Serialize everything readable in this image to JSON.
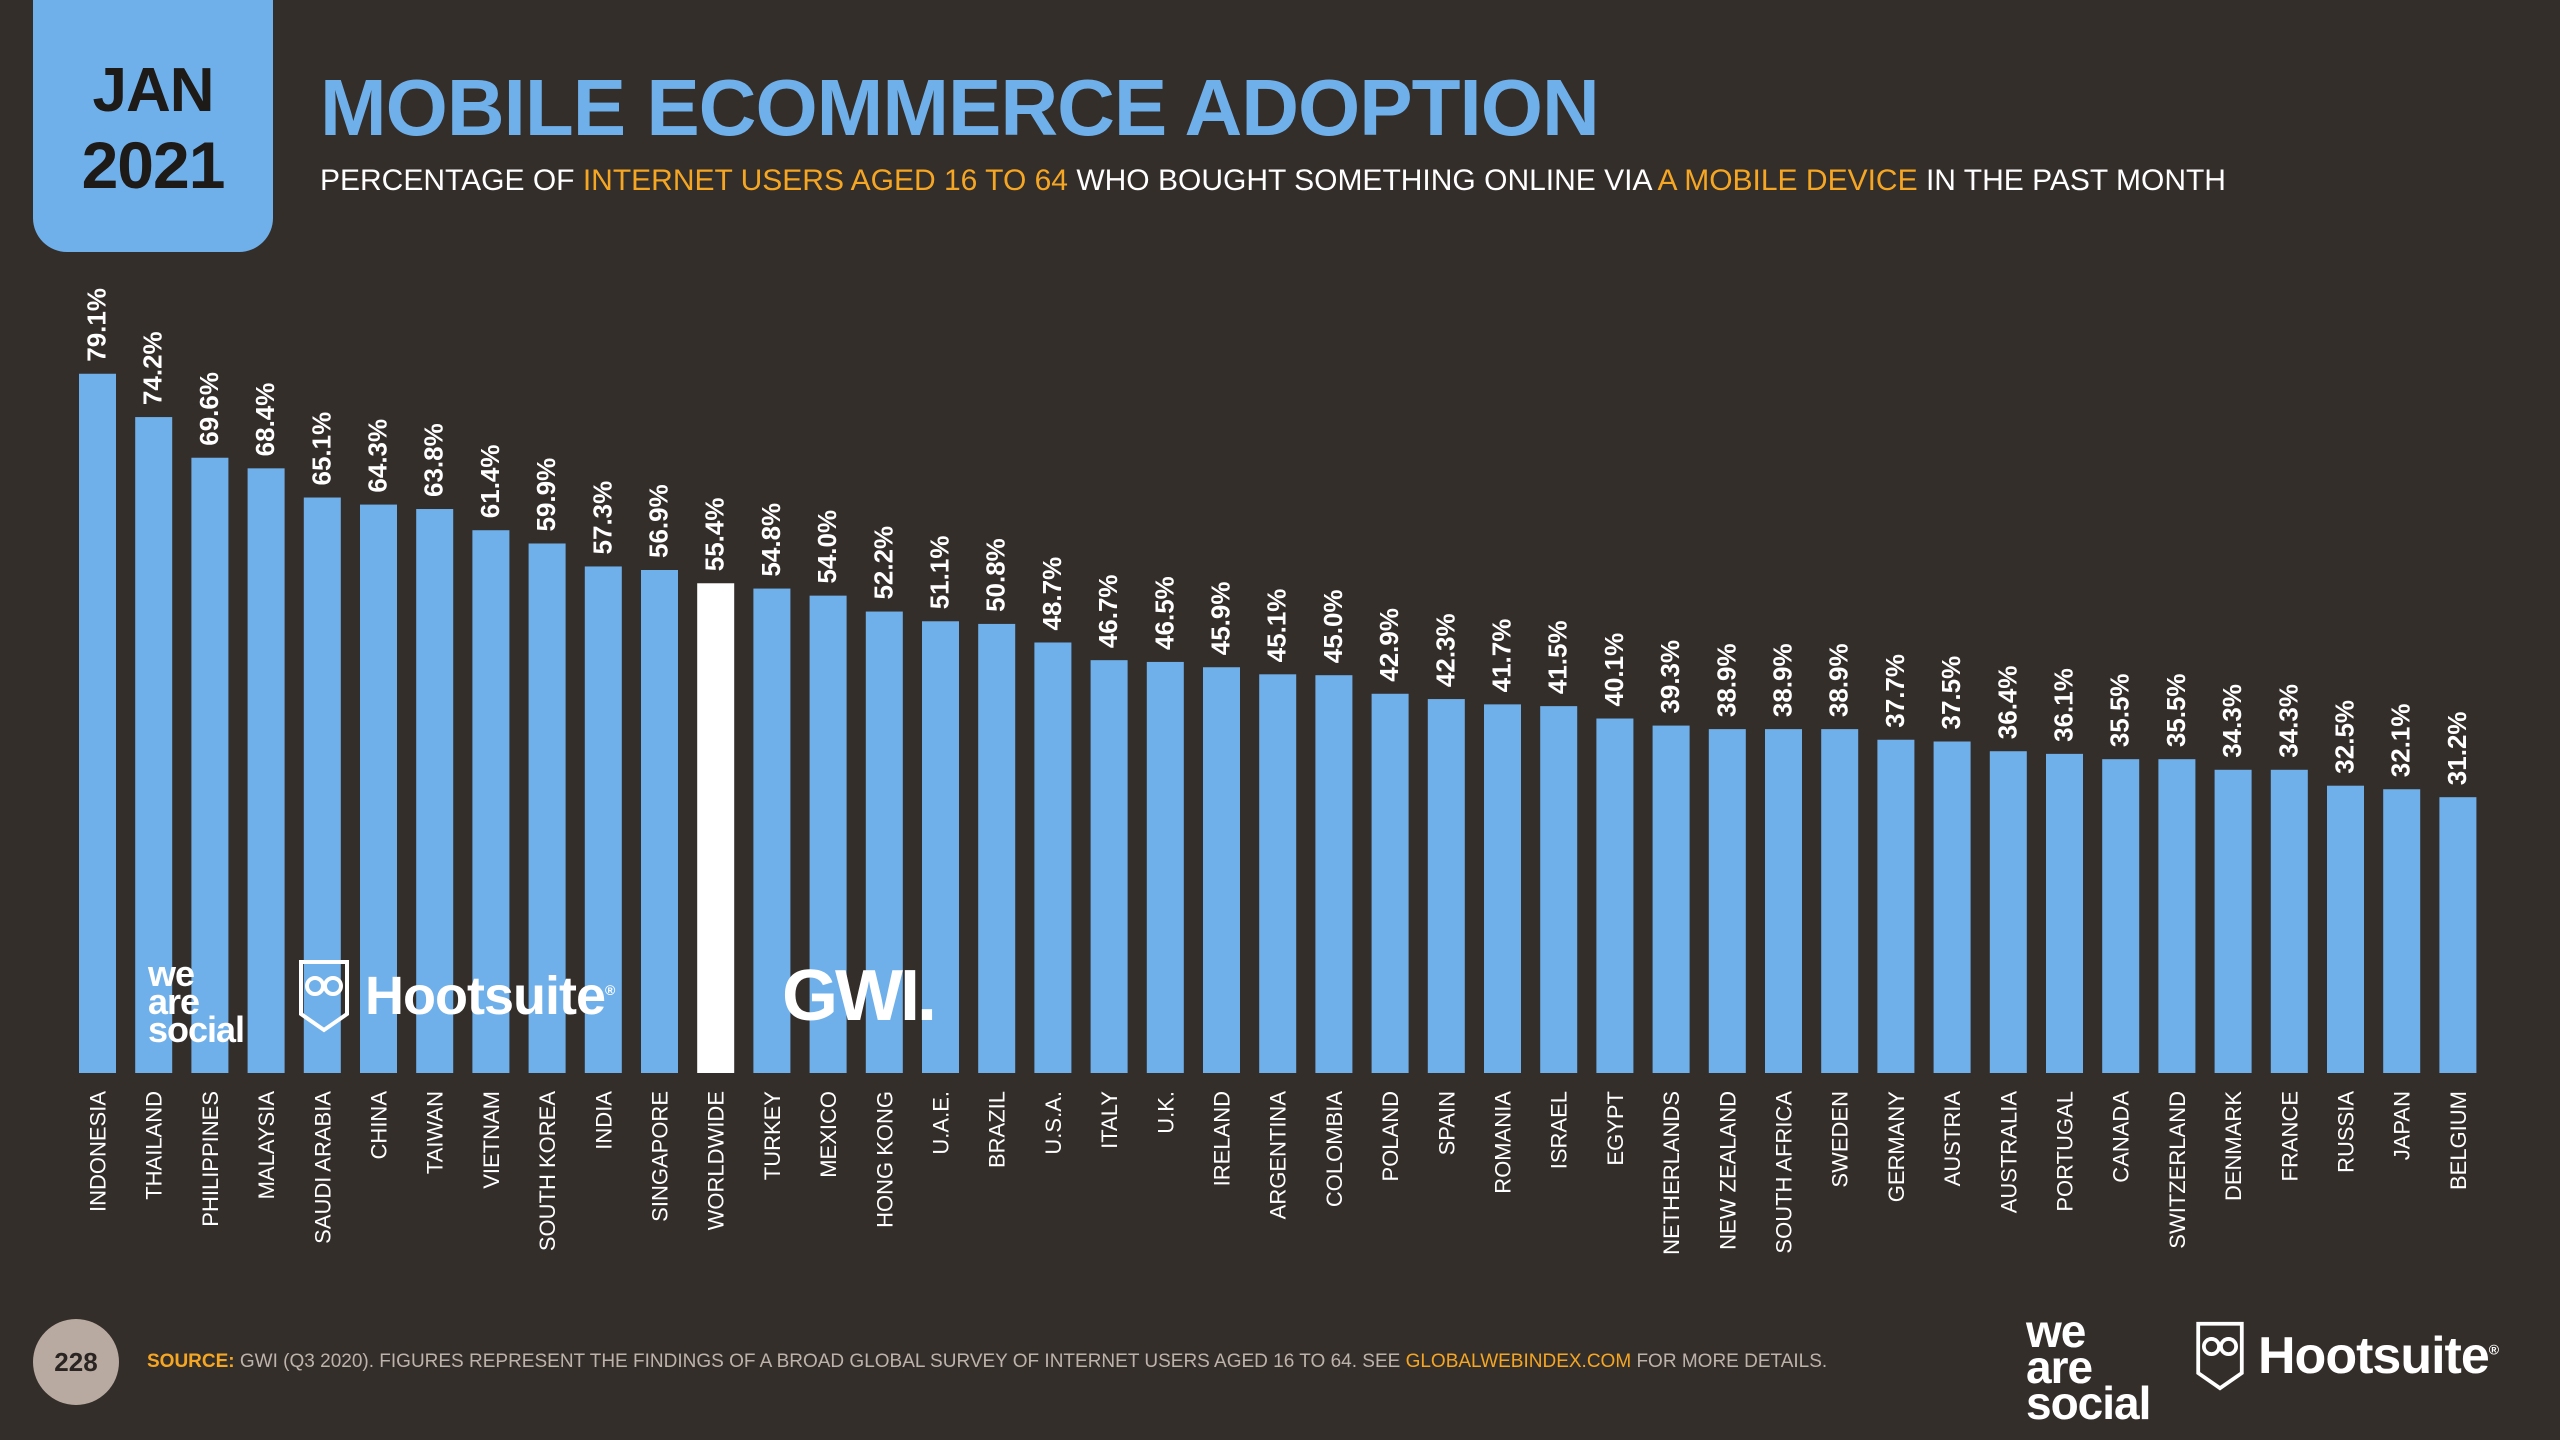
{
  "date_tab": {
    "month": "JAN",
    "year": "2021"
  },
  "title": "MOBILE ECOMMERCE ADOPTION",
  "subtitle": {
    "part1": "PERCENTAGE OF ",
    "highlight1": "INTERNET USERS AGED 16 TO 64",
    "part2": " WHO BOUGHT SOMETHING ONLINE VIA ",
    "highlight2": "A MOBILE DEVICE",
    "part3": " IN THE PAST MONTH"
  },
  "logos": {
    "we_are_social": [
      "we",
      "are",
      "social"
    ],
    "hootsuite": "Hootsuite",
    "registered": "®",
    "gwi": "GWI."
  },
  "footer": {
    "page_number": "228",
    "source_label": "SOURCE:",
    "source_text": " GWI (Q3 2020). FIGURES REPRESENT THE FINDINGS OF A BROAD GLOBAL SURVEY OF INTERNET USERS AGED 16 TO 64. SEE ",
    "source_url": "GLOBALWEBINDEX.COM",
    "source_tail": " FOR MORE DETAILS."
  },
  "colors": {
    "background": "#342e2b",
    "bar": "#6fb0ea",
    "highlight_bar": "#ffffff",
    "accent": "#f5a623"
  },
  "chart_data": {
    "type": "bar",
    "title": "MOBILE ECOMMERCE ADOPTION",
    "ylabel": "",
    "xlabel": "",
    "ylim": [
      0,
      100
    ],
    "highlight_category": "WORLDWIDE",
    "categories": [
      "INDONESIA",
      "THAILAND",
      "PHILIPPINES",
      "MALAYSIA",
      "SAUDI ARABIA",
      "CHINA",
      "TAIWAN",
      "VIETNAM",
      "SOUTH KOREA",
      "INDIA",
      "SINGAPORE",
      "WORLDWIDE",
      "TURKEY",
      "MEXICO",
      "HONG KONG",
      "U.A.E.",
      "BRAZIL",
      "U.S.A.",
      "ITALY",
      "U.K.",
      "IRELAND",
      "ARGENTINA",
      "COLOMBIA",
      "POLAND",
      "SPAIN",
      "ROMANIA",
      "ISRAEL",
      "EGYPT",
      "NETHERLANDS",
      "NEW ZEALAND",
      "SOUTH AFRICA",
      "SWEDEN",
      "GERMANY",
      "AUSTRIA",
      "AUSTRALIA",
      "PORTUGAL",
      "CANADA",
      "SWITZERLAND",
      "DENMARK",
      "FRANCE",
      "RUSSIA",
      "JAPAN",
      "BELGIUM"
    ],
    "values": [
      79.1,
      74.2,
      69.6,
      68.4,
      65.1,
      64.3,
      63.8,
      61.4,
      59.9,
      57.3,
      56.9,
      55.4,
      54.8,
      54.0,
      52.2,
      51.1,
      50.8,
      48.7,
      46.7,
      46.5,
      45.9,
      45.1,
      45.0,
      42.9,
      42.3,
      41.7,
      41.5,
      40.1,
      39.3,
      38.9,
      38.9,
      38.9,
      37.7,
      37.5,
      36.4,
      36.1,
      35.5,
      35.5,
      34.3,
      34.3,
      32.5,
      32.1,
      31.2
    ],
    "value_labels": [
      "79.1%",
      "74.2%",
      "69.6%",
      "68.4%",
      "65.1%",
      "64.3%",
      "63.8%",
      "61.4%",
      "59.9%",
      "57.3%",
      "56.9%",
      "55.4%",
      "54.8%",
      "54.0%",
      "52.2%",
      "51.1%",
      "50.8%",
      "48.7%",
      "46.7%",
      "46.5%",
      "45.9%",
      "45.1%",
      "45.0%",
      "42.9%",
      "42.3%",
      "41.7%",
      "41.5%",
      "40.1%",
      "39.3%",
      "38.9%",
      "38.9%",
      "38.9%",
      "37.7%",
      "37.5%",
      "36.4%",
      "36.1%",
      "35.5%",
      "35.5%",
      "34.3%",
      "34.3%",
      "32.5%",
      "32.1%",
      "31.2%"
    ]
  }
}
